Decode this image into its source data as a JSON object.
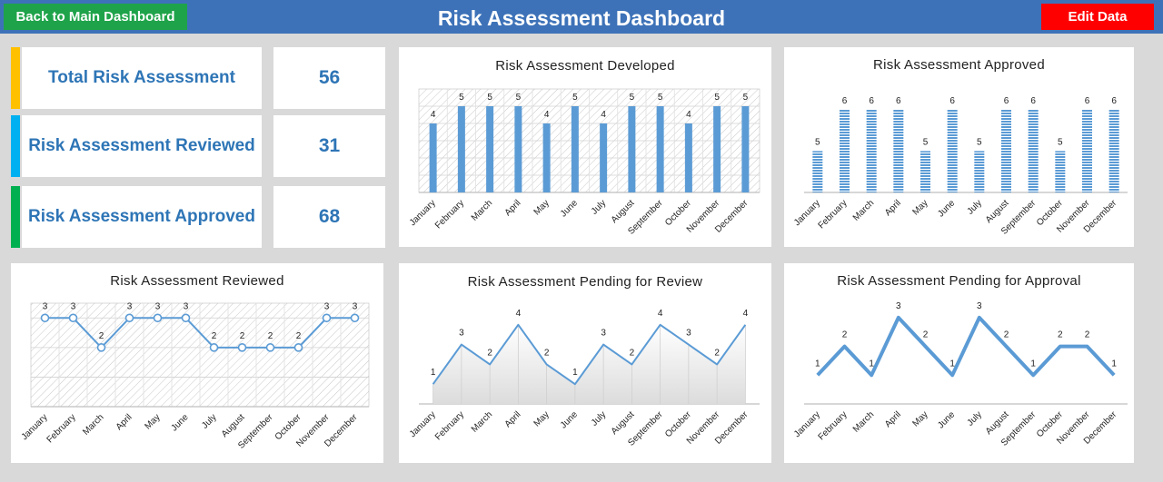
{
  "header": {
    "title": "Risk Assessment Dashboard",
    "back_label": "Back to Main Dashboard",
    "edit_label": "Edit Data"
  },
  "colors": {
    "header": "#3d72b8",
    "back": "#1fa34a",
    "edit": "#ff0000",
    "accent": "#2e75b6",
    "series": "#5b9bd5"
  },
  "kpis": [
    {
      "label": "Total Risk Assessment",
      "value": "56",
      "color": "#ffc000"
    },
    {
      "label": "Risk Assessment Reviewed",
      "value": "31",
      "color": "#00b0f0"
    },
    {
      "label": "Risk Assessment Approved",
      "value": "68",
      "color": "#00b050"
    }
  ],
  "chart_data": [
    {
      "id": "developed",
      "type": "bar",
      "title": "Risk Assessment  Developed",
      "categories": [
        "January",
        "February",
        "March",
        "April",
        "May",
        "June",
        "July",
        "August",
        "September",
        "October",
        "November",
        "December"
      ],
      "values": [
        4,
        5,
        5,
        5,
        4,
        5,
        4,
        5,
        5,
        4,
        5,
        5
      ],
      "ylim": [
        0,
        6
      ],
      "grid": true
    },
    {
      "id": "approved",
      "type": "bar",
      "title": "Risk Assessment  Approved",
      "categories": [
        "January",
        "February",
        "March",
        "April",
        "May",
        "June",
        "July",
        "August",
        "September",
        "October",
        "November",
        "December"
      ],
      "values": [
        5,
        6,
        6,
        6,
        5,
        6,
        5,
        6,
        6,
        5,
        6,
        6
      ],
      "ylim": [
        4,
        6.5
      ],
      "grid": false
    },
    {
      "id": "reviewed",
      "type": "line",
      "title": "Risk Assessment  Reviewed",
      "categories": [
        "January",
        "February",
        "March",
        "April",
        "May",
        "June",
        "July",
        "August",
        "September",
        "October",
        "November",
        "December"
      ],
      "values": [
        3,
        3,
        2,
        3,
        3,
        3,
        2,
        2,
        2,
        2,
        3,
        3
      ],
      "ylim": [
        0,
        3.5
      ],
      "grid": true
    },
    {
      "id": "pending-review",
      "type": "line",
      "title": "Risk Assessment  Pending  for  Review",
      "categories": [
        "January",
        "February",
        "March",
        "April",
        "May",
        "June",
        "July",
        "August",
        "September",
        "October",
        "November",
        "December"
      ],
      "values": [
        1,
        3,
        2,
        4,
        2,
        1,
        3,
        2,
        4,
        3,
        2,
        4
      ],
      "ylim": [
        0,
        5
      ],
      "grid": false
    },
    {
      "id": "pending-approval",
      "type": "line",
      "title": "Risk Assessment  Pending  for  Approval",
      "categories": [
        "January",
        "February",
        "March",
        "April",
        "May",
        "June",
        "July",
        "August",
        "September",
        "October",
        "November",
        "December"
      ],
      "values": [
        1,
        2,
        1,
        3,
        2,
        1,
        3,
        2,
        1,
        2,
        2,
        1
      ],
      "ylim": [
        0,
        3.5
      ],
      "grid": false
    }
  ]
}
